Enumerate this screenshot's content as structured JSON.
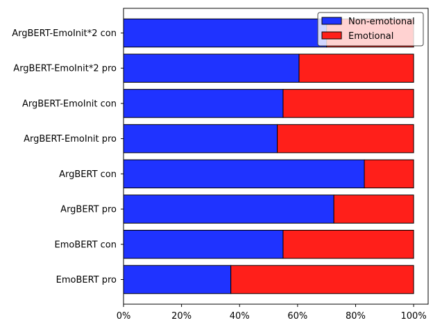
{
  "colors": {
    "non_emotional": "#1f33ff",
    "emotional": "#ff1f1a"
  },
  "chart_data": {
    "type": "bar",
    "orientation": "horizontal",
    "stacked": true,
    "categories": [
      "ArgBERT-EmoInit*2 con",
      "ArgBERT-EmoInit*2 pro",
      "ArgBERT-EmoInit con",
      "ArgBERT-EmoInit pro",
      "ArgBERT con",
      "ArgBERT pro",
      "EmoBERT con",
      "EmoBERT pro"
    ],
    "series": [
      {
        "name": "Non-emotional",
        "values": [
          0.7,
          0.605,
          0.55,
          0.53,
          0.83,
          0.725,
          0.55,
          0.37
        ]
      },
      {
        "name": "Emotional",
        "values": [
          0.3,
          0.395,
          0.45,
          0.47,
          0.17,
          0.275,
          0.45,
          0.63
        ]
      }
    ],
    "xlim": [
      0,
      1.05
    ],
    "xticks": [
      0,
      0.2,
      0.4,
      0.6,
      0.8,
      1.0
    ],
    "xtick_labels": [
      "0%",
      "20%",
      "40%",
      "60%",
      "80%",
      "100%"
    ],
    "legend_position": "top-right",
    "grid": false
  }
}
